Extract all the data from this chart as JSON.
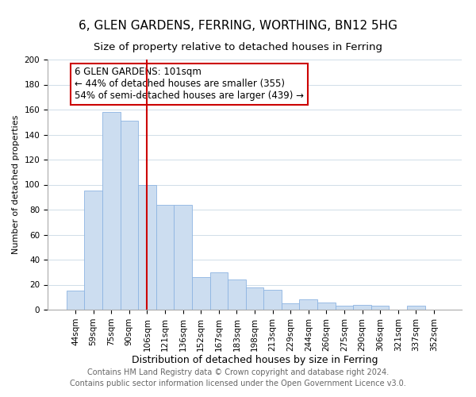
{
  "title": "6, GLEN GARDENS, FERRING, WORTHING, BN12 5HG",
  "subtitle": "Size of property relative to detached houses in Ferring",
  "xlabel": "Distribution of detached houses by size in Ferring",
  "ylabel": "Number of detached properties",
  "bar_labels": [
    "44sqm",
    "59sqm",
    "75sqm",
    "90sqm",
    "106sqm",
    "121sqm",
    "136sqm",
    "152sqm",
    "167sqm",
    "183sqm",
    "198sqm",
    "213sqm",
    "229sqm",
    "244sqm",
    "260sqm",
    "275sqm",
    "290sqm",
    "306sqm",
    "321sqm",
    "337sqm",
    "352sqm"
  ],
  "bar_values": [
    15,
    95,
    158,
    151,
    100,
    84,
    84,
    26,
    30,
    24,
    18,
    16,
    5,
    8,
    6,
    3,
    4,
    3,
    0,
    3,
    0
  ],
  "bar_color": "#ccddf0",
  "bar_edge_color": "#8db4e2",
  "vline_x_index": 4,
  "vline_color": "#cc0000",
  "ylim": [
    0,
    200
  ],
  "yticks": [
    0,
    20,
    40,
    60,
    80,
    100,
    120,
    140,
    160,
    180,
    200
  ],
  "annotation_title": "6 GLEN GARDENS: 101sqm",
  "annotation_line1": "← 44% of detached houses are smaller (355)",
  "annotation_line2": "54% of semi-detached houses are larger (439) →",
  "annotation_box_color": "#ffffff",
  "annotation_box_edge_color": "#cc0000",
  "footer1": "Contains HM Land Registry data © Crown copyright and database right 2024.",
  "footer2": "Contains public sector information licensed under the Open Government Licence v3.0.",
  "title_fontsize": 11,
  "subtitle_fontsize": 9.5,
  "xlabel_fontsize": 9,
  "ylabel_fontsize": 8,
  "tick_fontsize": 7.5,
  "annotation_fontsize": 8.5,
  "footer_fontsize": 7
}
